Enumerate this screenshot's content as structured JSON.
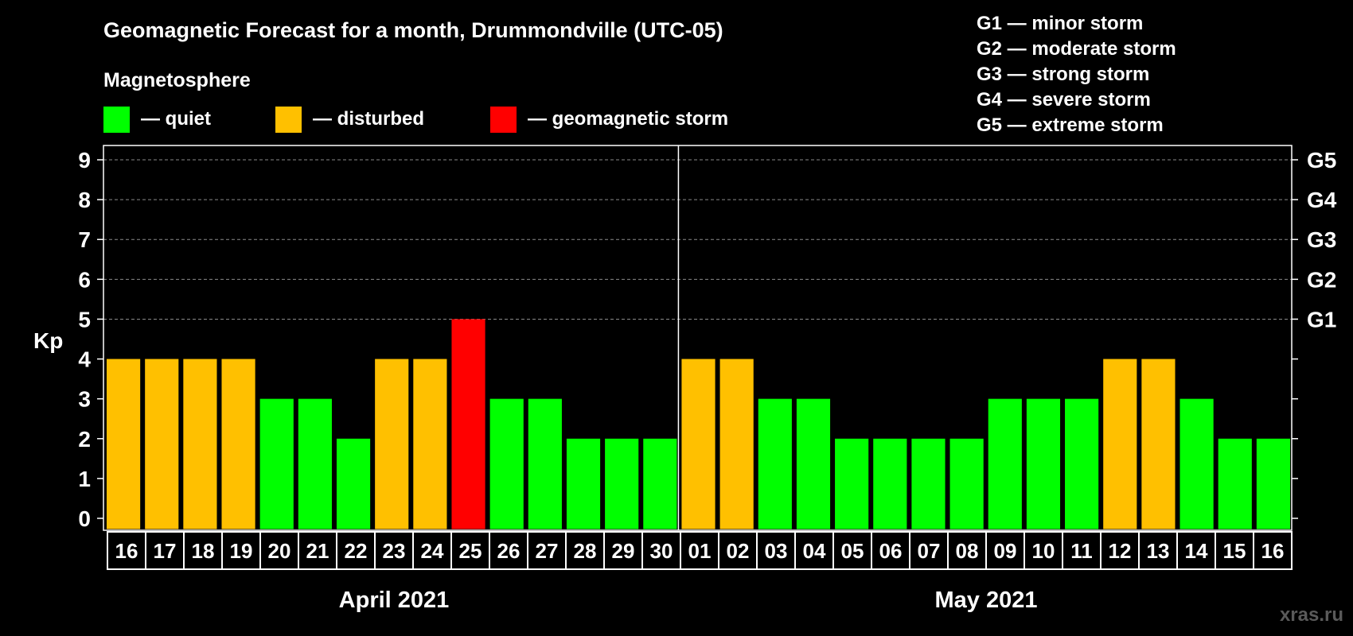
{
  "chart_data": {
    "type": "bar",
    "title": "Geomagnetic Forecast for a month, Drummondville (UTC-05)",
    "ylabel": "Kp",
    "ylim": [
      0,
      9
    ],
    "yticks": [
      "0",
      "1",
      "2",
      "3",
      "4",
      "5",
      "6",
      "7",
      "8",
      "9"
    ],
    "storm_levels": [
      {
        "kp": 5,
        "label": "G1"
      },
      {
        "kp": 6,
        "label": "G2"
      },
      {
        "kp": 7,
        "label": "G3"
      },
      {
        "kp": 8,
        "label": "G4"
      },
      {
        "kp": 9,
        "label": "G5"
      }
    ],
    "storm_legend": [
      "G1 — minor storm",
      "G2 — moderate storm",
      "G3 — strong storm",
      "G4 — severe storm",
      "G5 — extreme storm"
    ],
    "legend": {
      "title": "Magnetosphere",
      "items": [
        {
          "label": "— quiet",
          "color": "#00ff00"
        },
        {
          "label": "— disturbed",
          "color": "#ffc000"
        },
        {
          "label": "— geomagnetic storm",
          "color": "#ff0000"
        }
      ]
    },
    "months": [
      {
        "label": "April 2021",
        "start": 0,
        "count": 15
      },
      {
        "label": "May 2021",
        "start": 15,
        "count": 16
      }
    ],
    "categories": [
      "16",
      "17",
      "18",
      "19",
      "20",
      "21",
      "22",
      "23",
      "24",
      "25",
      "26",
      "27",
      "28",
      "29",
      "30",
      "01",
      "02",
      "03",
      "04",
      "05",
      "06",
      "07",
      "08",
      "09",
      "10",
      "11",
      "12",
      "13",
      "14",
      "15",
      "16"
    ],
    "values": [
      4,
      4,
      4,
      4,
      3,
      3,
      2,
      4,
      4,
      5,
      3,
      3,
      2,
      2,
      2,
      4,
      4,
      3,
      3,
      2,
      2,
      2,
      2,
      3,
      3,
      3,
      4,
      4,
      3,
      2,
      2
    ],
    "watermark": "xras.ru"
  }
}
